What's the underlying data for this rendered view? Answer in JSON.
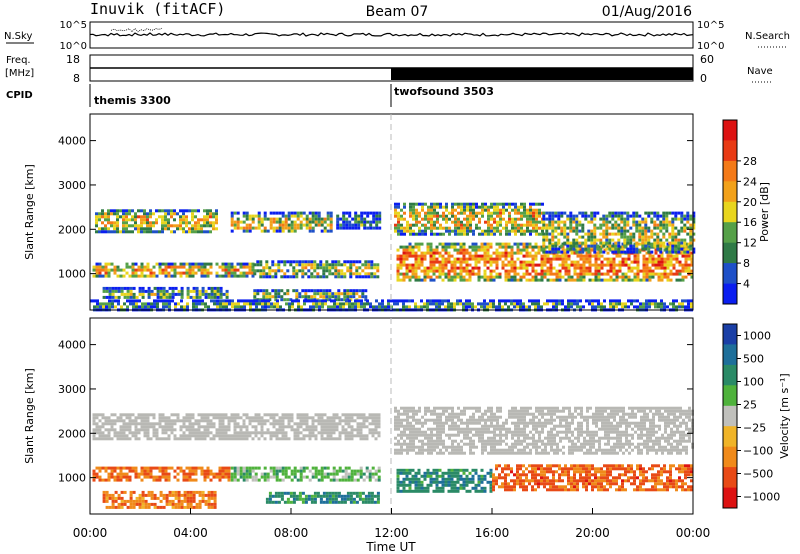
{
  "header": {
    "station": "Inuvik (fitACF)",
    "beam": "Beam 07",
    "date": "01/Aug/2016"
  },
  "strip_labels": {
    "nsky": "N.Sky",
    "nsearch": "N.Search",
    "freq_line1": "Freq.",
    "freq_line2": "[MHz]",
    "nave": "Nave",
    "cpid": "CPID"
  },
  "strip_ticks": {
    "noise_left": [
      "10^5",
      "10^0"
    ],
    "noise_right": [
      "10^5",
      "10^0"
    ],
    "freq_left": [
      "18",
      "8"
    ],
    "nave_right": [
      "60",
      "0"
    ]
  },
  "cpid_segments": [
    {
      "label": "themis 3300",
      "start_hour": 0,
      "end_hour": 12
    },
    {
      "label": "twofsound 3503",
      "start_hour": 12,
      "end_hour": 24
    }
  ],
  "colors": {
    "power_scale": [
      "#0a1ef0",
      "#1e50c8",
      "#2f7a46",
      "#55a048",
      "#e8d51e",
      "#f2a11a",
      "#f47a18",
      "#e83a14",
      "#dd1212"
    ],
    "velocity_scale": [
      "#1a3fa6",
      "#1e6f9a",
      "#2a8a66",
      "#4fb23c",
      "#c0c0bc",
      "#f0b428",
      "#f08a1a",
      "#e84a16",
      "#dd1212"
    ],
    "ground_scatter": "#b8b8b4"
  },
  "chart_data": [
    {
      "type": "heatmap",
      "title": "",
      "xlabel": "",
      "ylabel": "Slant Range [km]",
      "xlim": [
        0,
        24
      ],
      "ylim": [
        180,
        4600
      ],
      "x_tick_labels": [
        "00:00",
        "04:00",
        "08:00",
        "12:00",
        "16:00",
        "20:00",
        "00:00"
      ],
      "y_ticks": [
        1000,
        2000,
        3000,
        4000
      ],
      "colorbar": {
        "label": "Power [dB]",
        "tick_labels": [
          "4",
          "8",
          "12",
          "16",
          "20",
          "24",
          "28"
        ],
        "range": [
          0,
          30
        ]
      },
      "regions": [
        {
          "t0": 0.2,
          "t1": 5.0,
          "r0": 1950,
          "r1": 2450,
          "level": 0.55
        },
        {
          "t0": 5.6,
          "t1": 9.6,
          "r0": 1950,
          "r1": 2400,
          "level": 0.5
        },
        {
          "t0": 9.8,
          "t1": 11.5,
          "r0": 2050,
          "r1": 2400,
          "level": 0.25
        },
        {
          "t0": 0.1,
          "t1": 6.5,
          "r0": 950,
          "r1": 1250,
          "level": 0.6
        },
        {
          "t0": 6.5,
          "t1": 11.5,
          "r0": 950,
          "r1": 1300,
          "level": 0.45
        },
        {
          "t0": 0.5,
          "t1": 5.5,
          "r0": 450,
          "r1": 700,
          "level": 0.35
        },
        {
          "t0": 6.5,
          "t1": 11.0,
          "r0": 400,
          "r1": 650,
          "level": 0.4
        },
        {
          "t0": 12.1,
          "t1": 18.0,
          "r0": 1900,
          "r1": 2600,
          "level": 0.55
        },
        {
          "t0": 12.2,
          "t1": 24.0,
          "r0": 850,
          "r1": 1700,
          "level": 0.7
        },
        {
          "t0": 18.0,
          "t1": 24.0,
          "r0": 1500,
          "r1": 2400,
          "level": 0.45
        },
        {
          "t0": 0.0,
          "t1": 24.0,
          "r0": 200,
          "r1": 420,
          "level": 0.3
        }
      ]
    },
    {
      "type": "heatmap",
      "title": "",
      "xlabel": "Time UT",
      "ylabel": "Slant Range [km]",
      "xlim": [
        0,
        24
      ],
      "ylim": [
        180,
        4600
      ],
      "x_tick_labels": [
        "00:00",
        "04:00",
        "08:00",
        "12:00",
        "16:00",
        "20:00",
        "00:00"
      ],
      "y_ticks": [
        1000,
        2000,
        3000,
        4000
      ],
      "colorbar": {
        "label": "Velocity [m s⁻¹]",
        "tick_labels": [
          "1000",
          "500",
          "100",
          "25",
          "−25",
          "−100",
          "−500",
          "−1000"
        ],
        "range": [
          -1000,
          1000
        ]
      },
      "regions": [
        {
          "t0": 0.1,
          "t1": 11.5,
          "r0": 1900,
          "r1": 2450,
          "level": 0.0,
          "ground_scatter": true
        },
        {
          "t0": 12.1,
          "t1": 24.0,
          "r0": 1550,
          "r1": 2600,
          "level": 0.0,
          "ground_scatter": true
        },
        {
          "t0": 0.1,
          "t1": 5.5,
          "r0": 950,
          "r1": 1250,
          "level": -0.55
        },
        {
          "t0": 5.6,
          "t1": 11.5,
          "r0": 950,
          "r1": 1250,
          "level": 0.2
        },
        {
          "t0": 0.5,
          "t1": 5.0,
          "r0": 350,
          "r1": 700,
          "level": -0.5
        },
        {
          "t0": 7.0,
          "t1": 11.5,
          "r0": 420,
          "r1": 680,
          "level": 0.45
        },
        {
          "t0": 12.2,
          "t1": 16.0,
          "r0": 700,
          "r1": 1200,
          "level": 0.5
        },
        {
          "t0": 16.0,
          "t1": 24.0,
          "r0": 700,
          "r1": 1300,
          "level": -0.6
        }
      ]
    }
  ]
}
